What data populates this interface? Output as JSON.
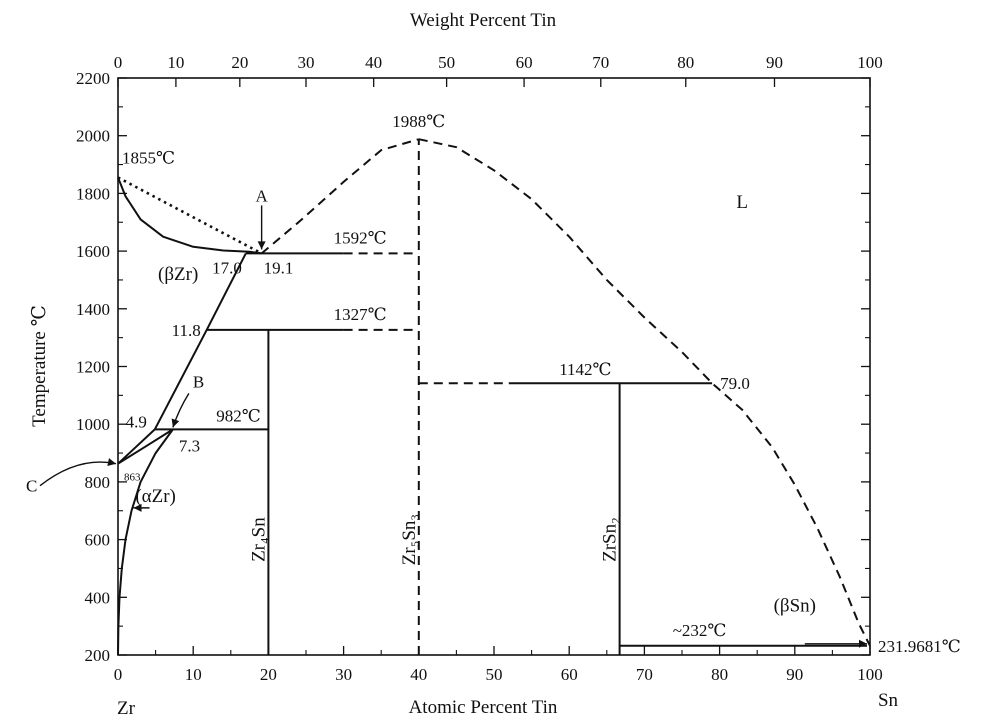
{
  "chart_data": {
    "type": "line",
    "title": "",
    "x_axis": {
      "label": "Atomic Percent Tin",
      "range": [
        0,
        100
      ],
      "ticks": [
        0,
        10,
        20,
        30,
        40,
        50,
        60,
        70,
        80,
        90,
        100
      ],
      "tick_labels": [
        "0",
        "10",
        "20",
        "30",
        "40",
        "50",
        "60",
        "70",
        "80",
        "90",
        "100"
      ],
      "left_end_label": "Zr",
      "right_end_label": "Sn"
    },
    "x2_axis": {
      "label": "Weight Percent Tin",
      "ticks_wt": [
        0,
        10,
        20,
        30,
        40,
        50,
        60,
        70,
        80,
        90,
        100
      ],
      "ticks_at": [
        0,
        7.7,
        16.2,
        25.0,
        34.0,
        43.7,
        54.0,
        64.2,
        75.5,
        87.3,
        100
      ],
      "tick_labels": [
        "0",
        "10",
        "20",
        "30",
        "40",
        "50",
        "60",
        "70",
        "80",
        "90",
        "100"
      ]
    },
    "y_axis": {
      "label": "Temperature ℃",
      "range": [
        200,
        2200
      ],
      "ticks": [
        200,
        400,
        600,
        800,
        1000,
        1200,
        1400,
        1600,
        1800,
        2000,
        2200
      ],
      "tick_labels": [
        "200",
        "400",
        "600",
        "800",
        "1000",
        "1200",
        "1400",
        "1600",
        "1800",
        "2000",
        "2200"
      ]
    },
    "grid": false,
    "series": [
      {
        "id": "liquidus-zr",
        "dash": "solid",
        "points": [
          [
            0,
            1855
          ],
          [
            1,
            1790
          ],
          [
            3,
            1710
          ],
          [
            6,
            1650
          ],
          [
            10,
            1615
          ],
          [
            14,
            1602
          ],
          [
            17.5,
            1598
          ],
          [
            19.1,
            1592
          ]
        ]
      },
      {
        "id": "metastable-liquidus",
        "dash": "dotted",
        "points": [
          [
            0,
            1855
          ],
          [
            19.1,
            1592
          ]
        ]
      },
      {
        "id": "beta-solvus",
        "dash": "solid",
        "points": [
          [
            0,
            863
          ],
          [
            4.9,
            982
          ],
          [
            11.8,
            1327
          ],
          [
            17.0,
            1592
          ]
        ]
      },
      {
        "id": "alpha-beta-boundary",
        "dash": "solid",
        "points": [
          [
            0,
            863
          ],
          [
            3.5,
            920
          ],
          [
            7.3,
            982
          ]
        ]
      },
      {
        "id": "alpha-solvus",
        "dash": "solid",
        "points": [
          [
            7.3,
            982
          ],
          [
            5,
            900
          ],
          [
            3,
            800
          ],
          [
            1.8,
            700
          ],
          [
            1,
            600
          ],
          [
            0.5,
            500
          ],
          [
            0.2,
            400
          ],
          [
            0.05,
            300
          ],
          [
            0,
            200
          ]
        ]
      },
      {
        "id": "peritectic-1592",
        "dash": "solid",
        "points": [
          [
            17.0,
            1592
          ],
          [
            30,
            1592
          ]
        ]
      },
      {
        "id": "peritectic-1592-dashed",
        "dash": "dashed",
        "points": [
          [
            30,
            1592
          ],
          [
            39.5,
            1592
          ]
        ]
      },
      {
        "id": "peritectoid-1327",
        "dash": "solid",
        "points": [
          [
            11.8,
            1327
          ],
          [
            30,
            1327
          ]
        ]
      },
      {
        "id": "peritectoid-1327-dashed",
        "dash": "dashed",
        "points": [
          [
            30,
            1327
          ],
          [
            39.5,
            1327
          ]
        ]
      },
      {
        "id": "eutectoid-982",
        "dash": "solid",
        "points": [
          [
            4.9,
            982
          ],
          [
            20,
            982
          ]
        ]
      },
      {
        "id": "zr4sn-line",
        "dash": "solid",
        "points": [
          [
            20,
            200
          ],
          [
            20,
            1327
          ]
        ]
      },
      {
        "id": "zr5sn3-line",
        "dash": "dashed",
        "points": [
          [
            40,
            200
          ],
          [
            40,
            1988
          ]
        ]
      },
      {
        "id": "liquidus-left",
        "dash": "dashed",
        "points": [
          [
            19.1,
            1592
          ],
          [
            24,
            1700
          ],
          [
            30,
            1840
          ],
          [
            35,
            1950
          ],
          [
            40,
            1988
          ]
        ]
      },
      {
        "id": "liquidus-right",
        "dash": "dashed",
        "points": [
          [
            40,
            1988
          ],
          [
            45,
            1960
          ],
          [
            50,
            1880
          ],
          [
            55,
            1780
          ],
          [
            60,
            1650
          ],
          [
            65,
            1500
          ],
          [
            70,
            1370
          ],
          [
            75,
            1250
          ],
          [
            79,
            1142
          ],
          [
            83,
            1050
          ],
          [
            87,
            920
          ],
          [
            90,
            790
          ],
          [
            93,
            640
          ],
          [
            96,
            470
          ],
          [
            98.5,
            310
          ],
          [
            100,
            232
          ]
        ]
      },
      {
        "id": "peritectic-1142-dashed",
        "dash": "dashed",
        "points": [
          [
            40,
            1142
          ],
          [
            52,
            1142
          ]
        ]
      },
      {
        "id": "peritectic-1142",
        "dash": "solid",
        "points": [
          [
            52,
            1142
          ],
          [
            79,
            1142
          ]
        ]
      },
      {
        "id": "zrsn2-line",
        "dash": "solid",
        "points": [
          [
            66.7,
            200
          ],
          [
            66.7,
            1142
          ]
        ]
      },
      {
        "id": "eutectic-232",
        "dash": "solid",
        "points": [
          [
            66.7,
            232
          ],
          [
            99.6,
            232
          ]
        ]
      }
    ],
    "annotations": [
      {
        "id": "t-1855",
        "text": "1855℃",
        "x": 0,
        "y": 1855
      },
      {
        "id": "t-1988",
        "text": "1988℃",
        "x": 40,
        "y": 1988
      },
      {
        "id": "t-1592",
        "text": "1592℃",
        "x": 30,
        "y": 1592
      },
      {
        "id": "t-1327",
        "text": "1327℃",
        "x": 30,
        "y": 1327
      },
      {
        "id": "t-1142",
        "text": "1142℃",
        "x": 60,
        "y": 1142
      },
      {
        "id": "t-982",
        "text": "982℃",
        "x": 12,
        "y": 982
      },
      {
        "id": "t-232",
        "text": "~232℃",
        "x": 80,
        "y": 232
      },
      {
        "id": "t-231",
        "text": "231.9681℃",
        "x": 100,
        "y": 232
      },
      {
        "id": "c-17-0",
        "text": "17.0",
        "x": 17.0,
        "y": 1592
      },
      {
        "id": "c-19-1",
        "text": "19.1",
        "x": 19.1,
        "y": 1592
      },
      {
        "id": "c-11-8",
        "text": "11.8",
        "x": 11.8,
        "y": 1327
      },
      {
        "id": "c-4-9",
        "text": "4.9",
        "x": 4.9,
        "y": 982
      },
      {
        "id": "c-7-3",
        "text": "7.3",
        "x": 7.3,
        "y": 982
      },
      {
        "id": "c-79-0",
        "text": "79.0",
        "x": 79,
        "y": 1142
      },
      {
        "id": "c-863",
        "text": "863",
        "x": 0,
        "y": 863
      },
      {
        "id": "point-a",
        "text": "A",
        "x": 19.1,
        "y": 1592
      },
      {
        "id": "point-b",
        "text": "B",
        "x": 7.3,
        "y": 982
      },
      {
        "id": "point-c",
        "text": "C",
        "x": 0,
        "y": 863
      }
    ],
    "phase_labels": [
      {
        "id": "phase-l",
        "text": "L",
        "x": 83,
        "y": 1750
      },
      {
        "id": "phase-beta-zr",
        "text": "(βZr)",
        "x": 8,
        "y": 1500
      },
      {
        "id": "phase-alpha-zr",
        "text": "(αZr)",
        "x": 5,
        "y": 730
      },
      {
        "id": "phase-beta-sn",
        "text": "(βSn)",
        "x": 90,
        "y": 350
      },
      {
        "id": "phase-zr4sn",
        "text": "Zr₄Sn",
        "x": 20,
        "y": 600
      },
      {
        "id": "phase-zr5sn3",
        "text": "Zr₅Sn₃",
        "x": 40,
        "y": 600
      },
      {
        "id": "phase-zrsn2",
        "text": "ZrSn₂",
        "x": 66.7,
        "y": 600
      }
    ]
  }
}
